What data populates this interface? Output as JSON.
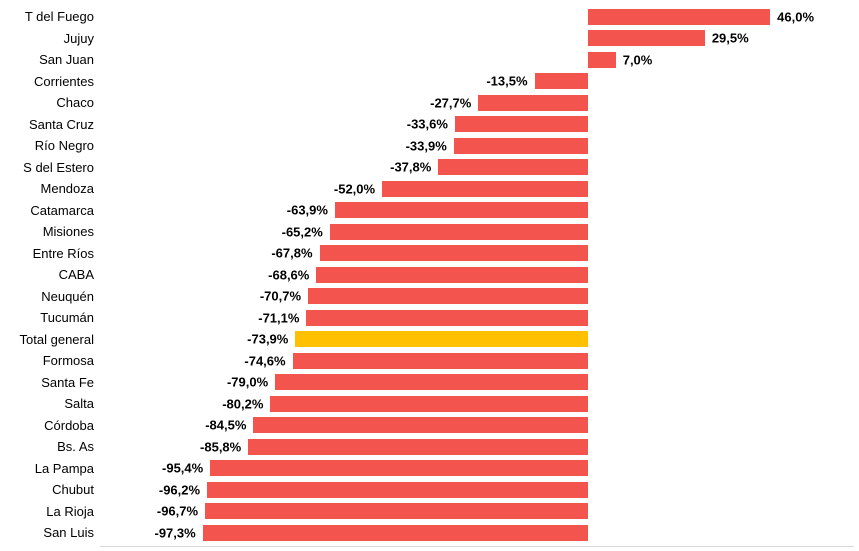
{
  "chart_data": {
    "type": "bar",
    "orientation": "horizontal",
    "title": "",
    "xlabel": "",
    "ylabel": "",
    "xlim": [
      -100,
      55
    ],
    "value_format": "percent_comma_decimal",
    "bar_color": "#f4544e",
    "highlight_color": "#ffc000",
    "highlight_category": "Total general",
    "legend": "none",
    "grid": "off",
    "categories": [
      "T del Fuego",
      "Jujuy",
      "San Juan",
      "Corrientes",
      "Chaco",
      "Santa Cruz",
      "Río Negro",
      "S del Estero",
      "Mendoza",
      "Catamarca",
      "Misiones",
      "Entre Ríos",
      "CABA",
      "Neuquén",
      "Tucumán",
      "Total general",
      "Formosa",
      "Santa Fe",
      "Salta",
      "Córdoba",
      "Bs. As",
      "La Pampa",
      "Chubut",
      "La Rioja",
      "San Luis"
    ],
    "values": [
      46.0,
      29.5,
      7.0,
      -13.5,
      -27.7,
      -33.6,
      -33.9,
      -37.8,
      -52.0,
      -63.9,
      -65.2,
      -67.8,
      -68.6,
      -70.7,
      -71.1,
      -73.9,
      -74.6,
      -79.0,
      -80.2,
      -84.5,
      -85.8,
      -95.4,
      -96.2,
      -96.7,
      -97.3
    ],
    "value_labels": [
      "46,0%",
      "29,5%",
      "7,0%",
      "-13,5%",
      "-27,7%",
      "-33,6%",
      "-33,9%",
      "-37,8%",
      "-52,0%",
      "-63,9%",
      "-65,2%",
      "-67,8%",
      "-68,6%",
      "-70,7%",
      "-71,1%",
      "-73,9%",
      "-74,6%",
      "-79,0%",
      "-80,2%",
      "-84,5%",
      "-85,8%",
      "-95,4%",
      "-96,2%",
      "-96,7%",
      "-97,3%"
    ]
  }
}
